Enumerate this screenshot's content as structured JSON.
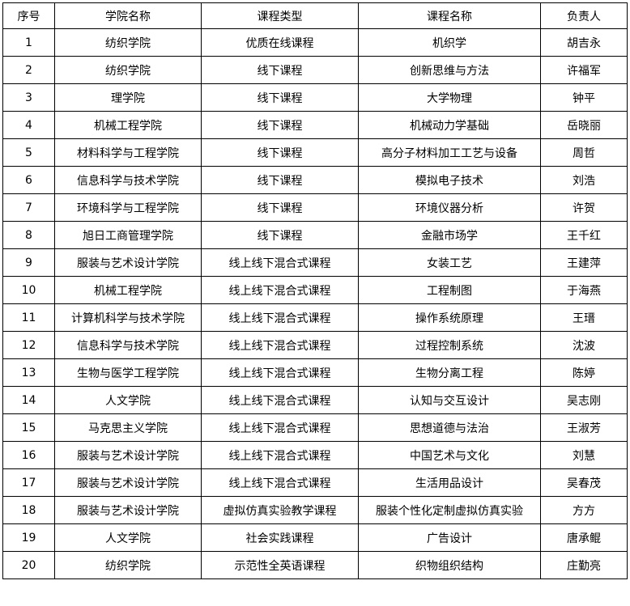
{
  "colors": {
    "border": "#000000",
    "text": "#000000",
    "background": "#ffffff"
  },
  "table": {
    "columns": [
      "序号",
      "学院名称",
      "课程类型",
      "课程名称",
      "负责人"
    ],
    "row_keys": [
      "index",
      "college",
      "course_type",
      "course_name",
      "leader"
    ],
    "rows": [
      {
        "index": "1",
        "college": "纺织学院",
        "course_type": "优质在线课程",
        "course_name": "机织学",
        "leader": "胡吉永"
      },
      {
        "index": "2",
        "college": "纺织学院",
        "course_type": "线下课程",
        "course_name": "创新思维与方法",
        "leader": "许福军"
      },
      {
        "index": "3",
        "college": "理学院",
        "course_type": "线下课程",
        "course_name": "大学物理",
        "leader": "钟平"
      },
      {
        "index": "4",
        "college": "机械工程学院",
        "course_type": "线下课程",
        "course_name": "机械动力学基础",
        "leader": "岳晓丽"
      },
      {
        "index": "5",
        "college": "材料科学与工程学院",
        "course_type": "线下课程",
        "course_name": "高分子材料加工工艺与设备",
        "leader": "周哲"
      },
      {
        "index": "6",
        "college": "信息科学与技术学院",
        "course_type": "线下课程",
        "course_name": "模拟电子技术",
        "leader": "刘浩"
      },
      {
        "index": "7",
        "college": "环境科学与工程学院",
        "course_type": "线下课程",
        "course_name": "环境仪器分析",
        "leader": "许贺"
      },
      {
        "index": "8",
        "college": "旭日工商管理学院",
        "course_type": "线下课程",
        "course_name": "金融市场学",
        "leader": "王千红"
      },
      {
        "index": "9",
        "college": "服装与艺术设计学院",
        "course_type": "线上线下混合式课程",
        "course_name": "女装工艺",
        "leader": "王建萍"
      },
      {
        "index": "10",
        "college": "机械工程学院",
        "course_type": "线上线下混合式课程",
        "course_name": "工程制图",
        "leader": "于海燕"
      },
      {
        "index": "11",
        "college": "计算机科学与技术学院",
        "course_type": "线上线下混合式课程",
        "course_name": "操作系统原理",
        "leader": "王瑨"
      },
      {
        "index": "12",
        "college": "信息科学与技术学院",
        "course_type": "线上线下混合式课程",
        "course_name": "过程控制系统",
        "leader": "沈波"
      },
      {
        "index": "13",
        "college": "生物与医学工程学院",
        "course_type": "线上线下混合式课程",
        "course_name": "生物分离工程",
        "leader": "陈婷"
      },
      {
        "index": "14",
        "college": "人文学院",
        "course_type": "线上线下混合式课程",
        "course_name": "认知与交互设计",
        "leader": "吴志刚"
      },
      {
        "index": "15",
        "college": "马克思主义学院",
        "course_type": "线上线下混合式课程",
        "course_name": "思想道德与法治",
        "leader": "王淑芳"
      },
      {
        "index": "16",
        "college": "服装与艺术设计学院",
        "course_type": "线上线下混合式课程",
        "course_name": "中国艺术与文化",
        "leader": "刘慧"
      },
      {
        "index": "17",
        "college": "服装与艺术设计学院",
        "course_type": "线上线下混合式课程",
        "course_name": "生活用品设计",
        "leader": "吴春茂"
      },
      {
        "index": "18",
        "college": "服装与艺术设计学院",
        "course_type": "虚拟仿真实验教学课程",
        "course_name": "服装个性化定制虚拟仿真实验",
        "leader": "方方"
      },
      {
        "index": "19",
        "college": "人文学院",
        "course_type": "社会实践课程",
        "course_name": "广告设计",
        "leader": "唐承鲲"
      },
      {
        "index": "20",
        "college": "纺织学院",
        "course_type": "示范性全英语课程",
        "course_name": "织物组织结构",
        "leader": "庄勤亮"
      }
    ]
  }
}
